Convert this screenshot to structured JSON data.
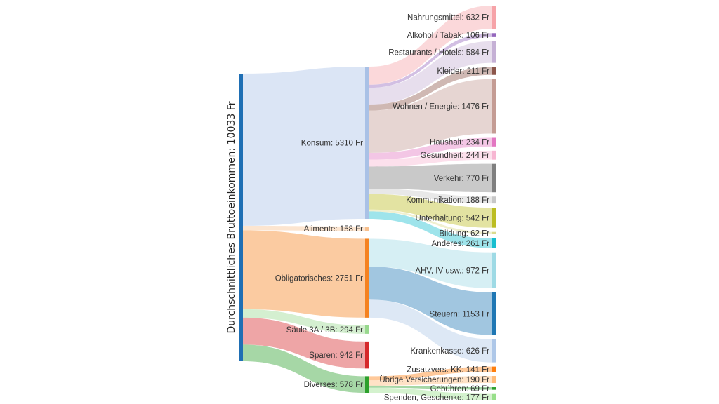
{
  "chart_data": {
    "type": "sankey",
    "unit": "Fr",
    "root": {
      "id": "root",
      "label": "Durchschnittliches Bruttoeinkommen",
      "value": 10033,
      "color": "#1f6fb4"
    },
    "middle": [
      {
        "id": "konsum",
        "label": "Konsum",
        "value": 5310,
        "color": "#a9c1e6"
      },
      {
        "id": "alimente",
        "label": "Alimente",
        "value": 158,
        "color": "#f7c08f"
      },
      {
        "id": "oblig",
        "label": "Obligatorisches",
        "value": 2751,
        "color": "#f58220"
      },
      {
        "id": "saeule",
        "label": "Säule 3A / 3B",
        "value": 294,
        "color": "#98d88e"
      },
      {
        "id": "sparen",
        "label": "Sparen",
        "value": 942,
        "color": "#d6282b"
      },
      {
        "id": "diverses",
        "label": "Diverses",
        "value": 578,
        "color": "#2ca02c"
      }
    ],
    "leaves": [
      {
        "id": "nahrung",
        "parent": "konsum",
        "label": "Nahrungsmittel",
        "value": 632,
        "color": "#f6a3a8"
      },
      {
        "id": "alkohol",
        "parent": "konsum",
        "label": "Alkohol / Tabak",
        "value": 106,
        "color": "#9467bd"
      },
      {
        "id": "restaurants",
        "parent": "konsum",
        "label": "Restaurants / Hotels",
        "value": 584,
        "color": "#c5b0d5"
      },
      {
        "id": "kleider",
        "parent": "konsum",
        "label": "Kleider",
        "value": 211,
        "color": "#8c564b"
      },
      {
        "id": "wohnen",
        "parent": "konsum",
        "label": "Wohnen / Energie",
        "value": 1476,
        "color": "#c49c94"
      },
      {
        "id": "haushalt",
        "parent": "konsum",
        "label": "Haushalt",
        "value": 234,
        "color": "#e377c2"
      },
      {
        "id": "gesundheit",
        "parent": "konsum",
        "label": "Gesundheit",
        "value": 244,
        "color": "#f7b6d2"
      },
      {
        "id": "verkehr",
        "parent": "konsum",
        "label": "Verkehr",
        "value": 770,
        "color": "#7f7f7f"
      },
      {
        "id": "kommunikation",
        "parent": "konsum",
        "label": "Kommunikation",
        "value": 188,
        "color": "#c7c7c7"
      },
      {
        "id": "unterhaltung",
        "parent": "konsum",
        "label": "Unterhaltung",
        "value": 542,
        "color": "#bcbd22"
      },
      {
        "id": "bildung",
        "parent": "konsum",
        "label": "Bildung",
        "value": 62,
        "color": "#dbdb8d"
      },
      {
        "id": "anderes",
        "parent": "konsum",
        "label": "Anderes",
        "value": 261,
        "color": "#17becf"
      },
      {
        "id": "ahv",
        "parent": "oblig",
        "label": "AHV, IV usw.",
        "value": 972,
        "color": "#9edae5"
      },
      {
        "id": "steuern",
        "parent": "oblig",
        "label": "Steuern",
        "value": 1153,
        "color": "#1f77b4"
      },
      {
        "id": "kranken",
        "parent": "oblig",
        "label": "Krankenkasse",
        "value": 626,
        "color": "#aec7e8"
      },
      {
        "id": "zusatz",
        "parent": "diverses",
        "label": "Zusatzvers. KK",
        "value": 141,
        "color": "#ff7f0e"
      },
      {
        "id": "versich",
        "parent": "diverses",
        "label": "Übrige Versicherungen",
        "value": 190,
        "color": "#ffbb78"
      },
      {
        "id": "gebuehren",
        "parent": "diverses",
        "label": "Gebühren",
        "value": 69,
        "color": "#2ca02c"
      },
      {
        "id": "spenden",
        "parent": "diverses",
        "label": "Spenden, Geschenke",
        "value": 177,
        "color": "#98df8a"
      }
    ]
  }
}
